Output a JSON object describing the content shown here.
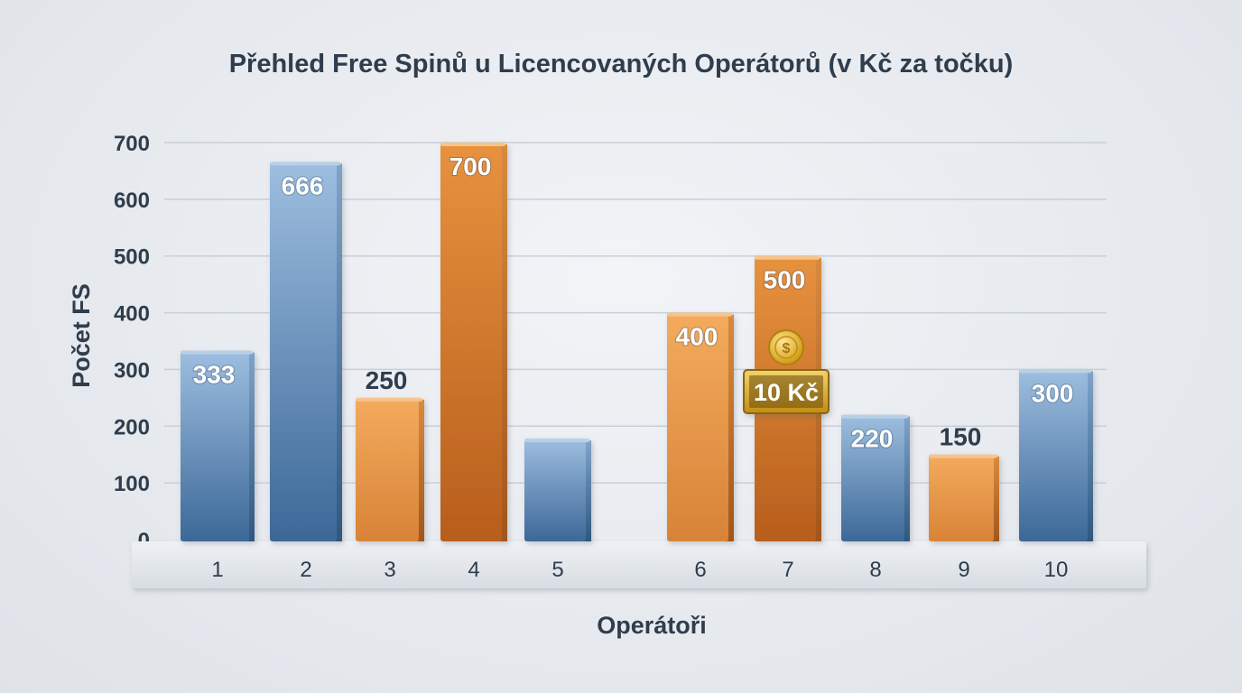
{
  "chart_data": {
    "type": "bar",
    "title": "Přehled Free Spinů u Licencovaných Operátorů (v Kč za točku)",
    "xlabel": "Operátoři",
    "ylabel": "Počet FS",
    "ylim": [
      0,
      700
    ],
    "yticks": [
      "0",
      "100",
      "200",
      "300",
      "400",
      "500",
      "600",
      "700"
    ],
    "categories": [
      "1",
      "2",
      "3",
      "4",
      "5",
      "6",
      "7",
      "8",
      "9",
      "10"
    ],
    "values": [
      333,
      666,
      250,
      700,
      178,
      400,
      500,
      220,
      150,
      300
    ],
    "data_labels": [
      "333",
      "666",
      "250",
      "700",
      "",
      "400",
      "500",
      "220",
      "150",
      "300"
    ],
    "label_inside": [
      true,
      true,
      false,
      true,
      false,
      true,
      true,
      true,
      false,
      true
    ],
    "bar_colors": [
      "blue",
      "blue",
      "orange",
      "orange",
      "blue",
      "orange",
      "orange",
      "blue",
      "orange",
      "blue"
    ],
    "highlight": {
      "category": "7",
      "badge": "10 Kč",
      "icon": "coin-icon"
    },
    "grid": true,
    "colors": {
      "blue_light": "#8fb3d6",
      "blue_dark": "#3e6a9a",
      "orange_light": "#f0a55a",
      "orange_dark": "#c46a22",
      "gold": "#d8a520",
      "text": "#2f3d4c",
      "grid": "#c9cfd7"
    }
  }
}
